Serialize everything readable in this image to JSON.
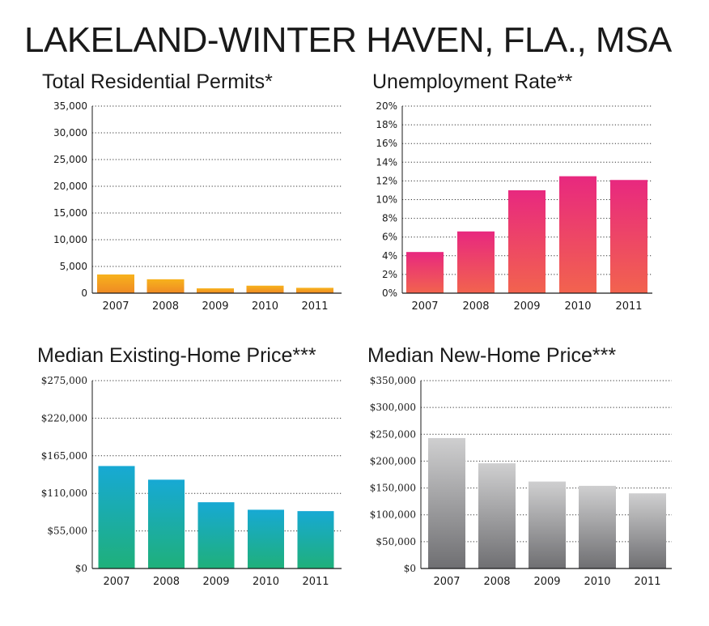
{
  "page": {
    "title": "LAKELAND-WINTER HAVEN, FLA., MSA"
  },
  "colors": {
    "orange": "#f4a21f",
    "pink": "#e93a7b",
    "teal": "#16a8b0",
    "gray": "#9a9a9c"
  },
  "chart_data": [
    {
      "type": "bar",
      "title": "Total Residential Permits*",
      "categories": [
        "2007",
        "2008",
        "2009",
        "2010",
        "2011"
      ],
      "values": [
        3500,
        2600,
        900,
        1400,
        1000
      ],
      "ylim": [
        0,
        35000
      ],
      "yticks": [
        0,
        5000,
        10000,
        15000,
        20000,
        25000,
        30000,
        35000
      ],
      "ytick_labels": [
        "0",
        "5,000",
        "10,000",
        "15,000",
        "20,000",
        "25,000",
        "30,000",
        "35,000"
      ],
      "grid": "dotted",
      "color": "orange"
    },
    {
      "type": "bar",
      "title": "Unemployment Rate**",
      "categories": [
        "2007",
        "2008",
        "2009",
        "2010",
        "2011"
      ],
      "values": [
        4.4,
        6.6,
        11.0,
        12.5,
        12.1
      ],
      "ylim": [
        0,
        20
      ],
      "yticks": [
        0,
        2,
        4,
        6,
        8,
        10,
        12,
        14,
        16,
        18,
        20
      ],
      "ytick_labels": [
        "0%",
        "2%",
        "4%",
        "6%",
        "8%",
        "10%",
        "12%",
        "14%",
        "16%",
        "18%",
        "20%"
      ],
      "grid": "dotted",
      "color": "pink"
    },
    {
      "type": "bar",
      "title": "Median Existing-Home Price***",
      "categories": [
        "2007",
        "2008",
        "2009",
        "2010",
        "2011"
      ],
      "values": [
        150000,
        130000,
        97000,
        86000,
        84000
      ],
      "ylim": [
        0,
        275000
      ],
      "yticks": [
        0,
        55000,
        110000,
        165000,
        220000,
        275000
      ],
      "ytick_labels": [
        "$0",
        "$55,000",
        "$110,000",
        "$165,000",
        "$220,000",
        "$275,000"
      ],
      "grid": "dotted",
      "color": "teal"
    },
    {
      "type": "bar",
      "title": "Median New-Home Price***",
      "categories": [
        "2007",
        "2008",
        "2009",
        "2010",
        "2011"
      ],
      "values": [
        243000,
        196000,
        162000,
        154000,
        140000
      ],
      "ylim": [
        0,
        350000
      ],
      "yticks": [
        0,
        50000,
        100000,
        150000,
        200000,
        250000,
        300000,
        350000
      ],
      "ytick_labels": [
        "$0",
        "$50,000",
        "$100,000",
        "$150,000",
        "$200,000",
        "$250,000",
        "$300,000",
        "$350,000"
      ],
      "grid": "dotted",
      "color": "gray"
    }
  ]
}
